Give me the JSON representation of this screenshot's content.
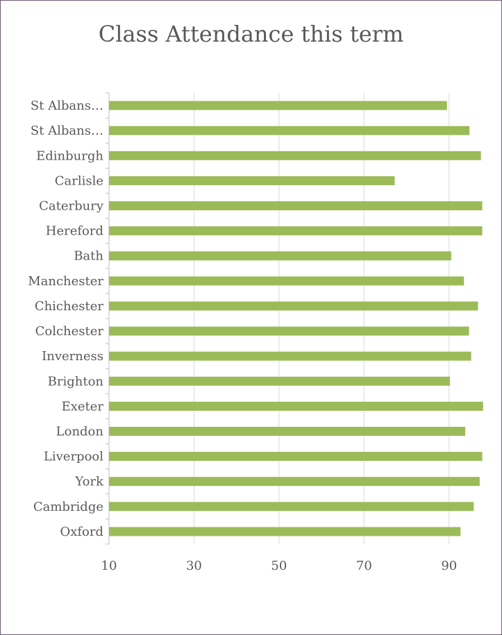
{
  "chart_data": {
    "type": "bar",
    "orientation": "horizontal",
    "title": "Class Attendance this term",
    "xlabel": "",
    "ylabel": "",
    "xlim": [
      10,
      100
    ],
    "xticks": [
      10,
      30,
      50,
      70,
      90
    ],
    "grid": true,
    "bar_color": "#9bbb59",
    "categories": [
      "St Albans…",
      "St Albans…",
      "Edinburgh",
      "Carlisle",
      "Caterbury",
      "Hereford",
      "Bath",
      "Manchester",
      "Chichester",
      "Colchester",
      "Inverness",
      "Brighton",
      "Exeter",
      "London",
      "Liverpool",
      "York",
      "Cambridge",
      "Oxford"
    ],
    "values": [
      89.5,
      94.8,
      97.5,
      77.2,
      97.8,
      97.8,
      90.5,
      93.5,
      96.8,
      94.7,
      95.2,
      90.2,
      98.0,
      93.8,
      97.8,
      97.2,
      95.8,
      92.7
    ]
  }
}
